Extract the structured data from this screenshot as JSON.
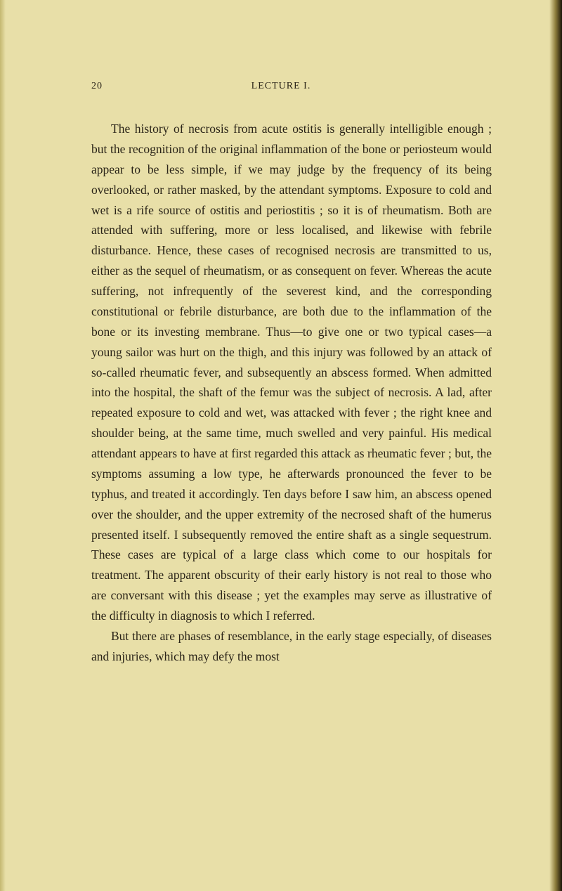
{
  "page_number": "20",
  "lecture_title": "LECTURE I.",
  "paragraph1": "The history of necrosis from acute ostitis is generally intelligible enough ; but the recognition of the original inflammation of the bone or periosteum would appear to be less simple, if we may judge by the frequency of its being overlooked, or rather masked, by the attendant symptoms. Exposure to cold and wet is a rife source of ostitis and periostitis ; so it is of rheumatism. Both are attended with suffering, more or less localised, and likewise with febrile disturbance. Hence, these cases of recognised necrosis are transmitted to us, either as the sequel of rheumatism, or as consequent on fever. Whereas the acute suffering, not infrequently of the severest kind, and the corresponding constitutional or febrile disturbance, are both due to the inflammation of the bone or its investing membrane. Thus—to give one or two typical cases—a young sailor was hurt on the thigh, and this injury was followed by an attack of so-called rheumatic fever, and subsequently an abscess formed. When admitted into the hospital, the shaft of the femur was the subject of necrosis. A lad, after repeated exposure to cold and wet, was attacked with fever ; the right knee and shoulder being, at the same time, much swelled and very painful. His medical attendant appears to have at first regarded this attack as rheumatic fever ; but, the symptoms assuming a low type, he afterwards pronounced the fever to be typhus, and treated it accordingly. Ten days before I saw him, an abscess opened over the shoulder, and the upper extremity of the necrosed shaft of the humerus presented itself. I subsequently removed the entire shaft as a single sequestrum. These cases are typical of a large class which come to our hospitals for treatment. The apparent obscurity of their early history is not real to those who are conversant with this disease ; yet the examples may serve as illustrative of the difficulty in diagnosis to which I referred.",
  "paragraph2": "But there are phases of resemblance, in the early stage especially, of diseases and injuries, which may defy the most",
  "colors": {
    "background": "#e8dfa8",
    "text": "#2a2418",
    "edge_dark": "#1a1408",
    "edge_mid": "#8b7a3a"
  },
  "typography": {
    "body_fontsize": 17.5,
    "header_fontsize": 14,
    "line_height": 1.65,
    "text_indent": 28
  }
}
